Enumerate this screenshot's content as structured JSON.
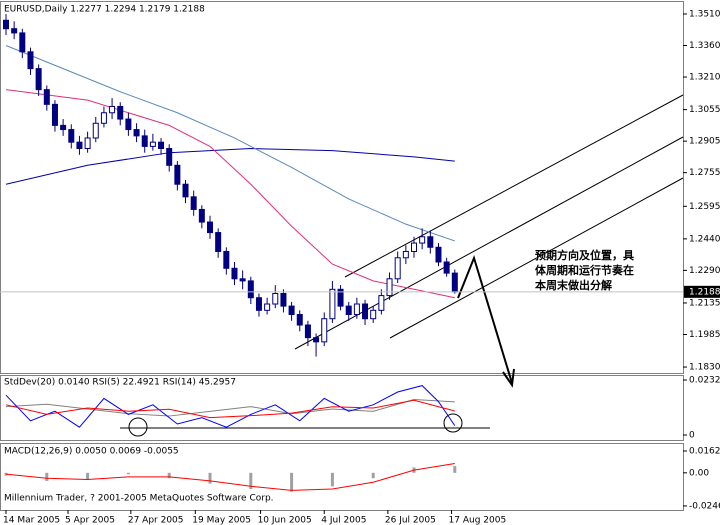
{
  "chart_data": [
    {
      "type": "candlestick",
      "title": "EURUSD,Daily  1.2277 1.2294 1.2179 1.2188",
      "ylim": [
        1.1797,
        1.3567
      ],
      "yticks": [
        {
          "value": 1.351,
          "label": "1.3510"
        },
        {
          "value": 1.336,
          "label": "1.3360"
        },
        {
          "value": 1.321,
          "label": "1.3210"
        },
        {
          "value": 1.3055,
          "label": "1.3055"
        },
        {
          "value": 1.2905,
          "label": "1.2905"
        },
        {
          "value": 1.2755,
          "label": "1.2755"
        },
        {
          "value": 1.2595,
          "label": "1.2595"
        },
        {
          "value": 1.244,
          "label": "1.2440"
        },
        {
          "value": 1.229,
          "label": "1.2290"
        },
        {
          "value": 1.2135,
          "label": "1.2135"
        },
        {
          "value": 1.1985,
          "label": "1.1985"
        },
        {
          "value": 1.183,
          "label": "1.1830"
        }
      ],
      "last_price": {
        "value": 1.2188,
        "label": "1.2188"
      },
      "up_color": "#ffffff",
      "down_color": "#000080",
      "ohlc": [
        [
          1.348,
          1.351,
          1.341,
          1.344
        ],
        [
          1.344,
          1.3475,
          1.339,
          1.342
        ],
        [
          1.342,
          1.344,
          1.33,
          1.333
        ],
        [
          1.333,
          1.335,
          1.322,
          1.325
        ],
        [
          1.325,
          1.327,
          1.312,
          1.315
        ],
        [
          1.315,
          1.317,
          1.305,
          1.308
        ],
        [
          1.308,
          1.31,
          1.295,
          1.298
        ],
        [
          1.298,
          1.301,
          1.293,
          1.296
        ],
        [
          1.296,
          1.2985,
          1.287,
          1.29
        ],
        [
          1.29,
          1.293,
          1.284,
          1.287
        ],
        [
          1.287,
          1.295,
          1.285,
          1.292
        ],
        [
          1.292,
          1.302,
          1.29,
          1.299
        ],
        [
          1.299,
          1.307,
          1.297,
          1.304
        ],
        [
          1.304,
          1.311,
          1.301,
          1.307
        ],
        [
          1.307,
          1.309,
          1.298,
          1.301
        ],
        [
          1.301,
          1.304,
          1.293,
          1.296
        ],
        [
          1.296,
          1.299,
          1.29,
          1.293
        ],
        [
          1.293,
          1.296,
          1.285,
          1.288
        ],
        [
          1.288,
          1.294,
          1.286,
          1.29
        ],
        [
          1.29,
          1.292,
          1.284,
          1.287
        ],
        [
          1.287,
          1.289,
          1.276,
          1.279
        ],
        [
          1.279,
          1.281,
          1.267,
          1.27
        ],
        [
          1.27,
          1.272,
          1.261,
          1.264
        ],
        [
          1.264,
          1.267,
          1.255,
          1.258
        ],
        [
          1.258,
          1.26,
          1.249,
          1.252
        ],
        [
          1.252,
          1.255,
          1.244,
          1.247
        ],
        [
          1.247,
          1.249,
          1.235,
          1.238
        ],
        [
          1.238,
          1.24,
          1.227,
          1.23
        ],
        [
          1.23,
          1.233,
          1.222,
          1.225
        ],
        [
          1.225,
          1.229,
          1.22,
          1.224
        ],
        [
          1.224,
          1.226,
          1.213,
          1.216
        ],
        [
          1.216,
          1.218,
          1.207,
          1.21
        ],
        [
          1.21,
          1.216,
          1.208,
          1.213
        ],
        [
          1.213,
          1.222,
          1.211,
          1.218
        ],
        [
          1.218,
          1.22,
          1.209,
          1.212
        ],
        [
          1.212,
          1.214,
          1.205,
          1.208
        ],
        [
          1.208,
          1.21,
          1.2,
          1.203
        ],
        [
          1.203,
          1.205,
          1.193,
          1.197
        ],
        [
          1.197,
          1.199,
          1.188,
          1.195
        ],
        [
          1.195,
          1.209,
          1.193,
          1.206
        ],
        [
          1.206,
          1.224,
          1.204,
          1.22
        ],
        [
          1.22,
          1.222,
          1.21,
          1.212
        ],
        [
          1.212,
          1.214,
          1.205,
          1.208
        ],
        [
          1.208,
          1.216,
          1.206,
          1.213
        ],
        [
          1.213,
          1.215,
          1.203,
          1.206
        ],
        [
          1.206,
          1.212,
          1.204,
          1.21
        ],
        [
          1.21,
          1.22,
          1.208,
          1.217
        ],
        [
          1.217,
          1.228,
          1.215,
          1.225
        ],
        [
          1.225,
          1.238,
          1.223,
          1.235
        ],
        [
          1.235,
          1.241,
          1.232,
          1.238
        ],
        [
          1.238,
          1.245,
          1.235,
          1.242
        ],
        [
          1.242,
          1.249,
          1.239,
          1.245
        ],
        [
          1.245,
          1.248,
          1.237,
          1.24
        ],
        [
          1.24,
          1.242,
          1.231,
          1.233
        ],
        [
          1.233,
          1.235,
          1.226,
          1.2277
        ],
        [
          1.2277,
          1.2294,
          1.2179,
          1.2188
        ]
      ],
      "series": [
        {
          "color": "#0000aa",
          "x": [
            0,
            10,
            20,
            30,
            40,
            50,
            55
          ],
          "values": [
            1.27,
            1.279,
            1.285,
            1.287,
            1.286,
            1.283,
            1.281
          ]
        },
        {
          "color": "#e0307a",
          "x": [
            0,
            10,
            20,
            25,
            30,
            35,
            40,
            45,
            50,
            55
          ],
          "values": [
            1.315,
            1.31,
            1.298,
            1.288,
            1.27,
            1.25,
            1.232,
            1.224,
            1.22,
            1.216
          ]
        },
        {
          "color": "#5a8ab8",
          "x": [
            0,
            7,
            14,
            21,
            28,
            35,
            42,
            49,
            55
          ],
          "values": [
            1.336,
            1.325,
            1.314,
            1.304,
            1.292,
            1.278,
            1.263,
            1.251,
            1.243
          ]
        }
      ],
      "annotation": [
        "预期方向及位置，具",
        "体周期和运行节奏在",
        "本周末做出分解"
      ]
    },
    {
      "type": "line",
      "title": "StdDev(20) 0.0140  RSI(5) 22.4921  RSI(14) 45.2957",
      "ylim": [
        -0.0021,
        0.0249
      ],
      "yticks": [
        {
          "value": 0.0232,
          "label": "0.0232"
        },
        0
      ],
      "y2lim": [
        0,
        100
      ],
      "series": [
        {
          "color": "#808080",
          "x": [
            0,
            5,
            10,
            15,
            20,
            25,
            30,
            35,
            40,
            45,
            50,
            55
          ],
          "values": [
            0.012,
            0.013,
            0.011,
            0.009,
            0.008,
            0.01,
            0.012,
            0.009,
            0.011,
            0.01,
            0.015,
            0.014
          ]
        },
        {
          "color": "#0000ff",
          "axis": "y2",
          "x": [
            0,
            3,
            6,
            9,
            12,
            15,
            18,
            21,
            24,
            27,
            30,
            33,
            36,
            39,
            42,
            45,
            48,
            51,
            53,
            55
          ],
          "values": [
            70,
            30,
            45,
            20,
            65,
            40,
            55,
            25,
            35,
            20,
            40,
            55,
            30,
            65,
            45,
            55,
            75,
            85,
            60,
            22.4921
          ]
        },
        {
          "color": "#ff0000",
          "axis": "y2",
          "x": [
            0,
            5,
            10,
            15,
            20,
            25,
            30,
            35,
            40,
            45,
            50,
            55
          ],
          "values": [
            55,
            40,
            50,
            45,
            48,
            35,
            38,
            42,
            52,
            50,
            62,
            45.2957
          ]
        }
      ]
    },
    {
      "type": "macd",
      "title": "MACD(12,26,9) 0.0050 0.0069 -0.0055",
      "footer": "Millennium Trader, ? 2001-2005 MetaQuotes Software Corp.",
      "ylim": [
        -0.0276,
        0.0214
      ],
      "yticks": [
        {
          "value": 0.0162,
          "label": "0.0162"
        },
        {
          "value": 0,
          "label": "0.00"
        },
        {
          "value": -0.0246,
          "label": "-0.0246"
        }
      ],
      "xticks": [
        {
          "value": 0,
          "label": "14 Mar 2005"
        },
        {
          "value": 7.6,
          "label": "5 Apr 2005"
        },
        {
          "value": 15.3,
          "label": "27 Apr 2005"
        },
        {
          "value": 23.2,
          "label": "19 May 2005"
        },
        {
          "value": 31.2,
          "label": "10 Jun 2005"
        },
        {
          "value": 39,
          "label": "4 Jul 2005"
        },
        {
          "value": 46.8,
          "label": "26 Jul 2005"
        },
        {
          "value": 54.6,
          "label": "17 Aug 2005"
        }
      ],
      "x": [
        0,
        5,
        10,
        15,
        20,
        25,
        30,
        35,
        40,
        45,
        50,
        55
      ],
      "histogram": {
        "color": "#a0a0a0",
        "values": [
          -0.002,
          -0.006,
          -0.005,
          -0.001,
          -0.004,
          -0.008,
          -0.012,
          -0.014,
          -0.01,
          -0.004,
          0.004,
          0.005
        ]
      },
      "signal": {
        "color": "#ff0000",
        "values": [
          -0.001,
          -0.004,
          -0.005,
          -0.003,
          -0.003,
          -0.006,
          -0.01,
          -0.013,
          -0.012,
          -0.007,
          0.002,
          0.0069
        ]
      }
    }
  ]
}
